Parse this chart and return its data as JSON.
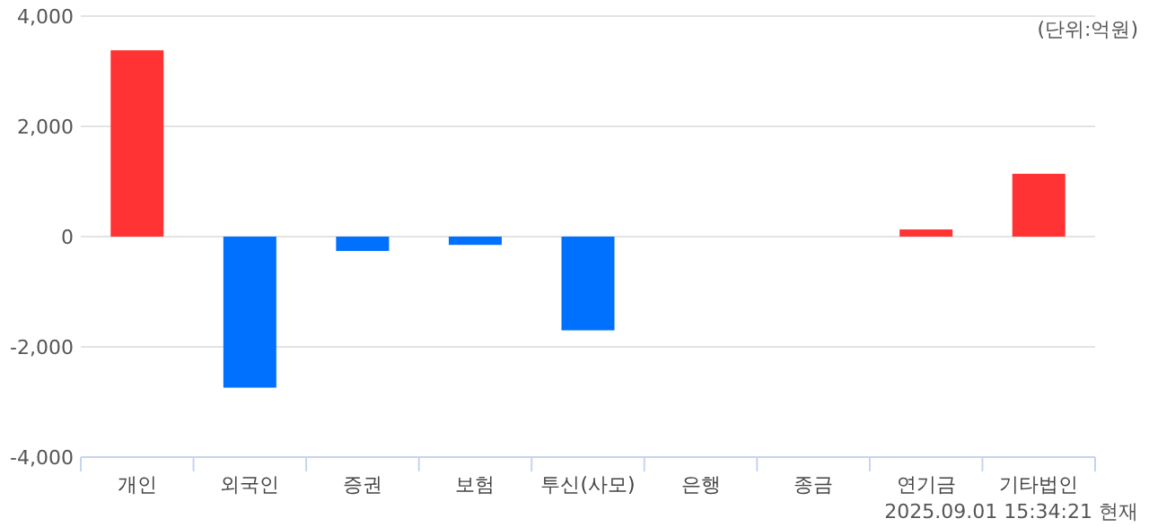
{
  "chart_data": {
    "type": "bar",
    "categories": [
      "개인",
      "외국인",
      "증권",
      "보험",
      "투신(사모)",
      "은행",
      "종금",
      "연기금",
      "기타법인"
    ],
    "values": [
      3380,
      -2740,
      -260,
      -150,
      -1700,
      0,
      0,
      130,
      1140
    ],
    "colors": [
      "#ff3333",
      "#0070ff",
      "#0070ff",
      "#0070ff",
      "#0070ff",
      "#0070ff",
      "#0070ff",
      "#ff3333",
      "#ff3333"
    ],
    "ylim": [
      -4000,
      4000
    ],
    "yticks": [
      {
        "value": -4000,
        "label": "-4,000"
      },
      {
        "value": -2000,
        "label": "-2,000"
      },
      0,
      {
        "value": 2000,
        "label": "2,000"
      },
      {
        "value": 4000,
        "label": "4,000"
      }
    ],
    "grid": "y",
    "annotations": [
      "(단위:억원)",
      "2025.09.01 15:34:21 현재"
    ]
  }
}
